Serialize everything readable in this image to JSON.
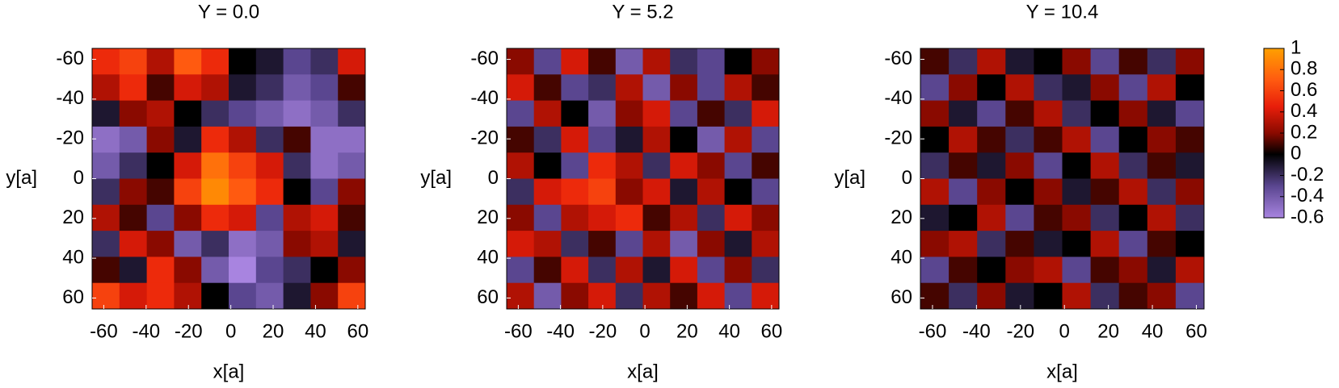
{
  "chart_data": [
    {
      "type": "heatmap",
      "title": "Y = 0.0",
      "xlabel": "x[a]",
      "ylabel": "y[a]",
      "xlim": [
        -65.5,
        63.5
      ],
      "ylim": [
        -65.5,
        65.5
      ],
      "y_reversed": true,
      "xticks": [
        -60,
        -40,
        -20,
        0,
        20,
        40,
        60
      ],
      "yticks": [
        -60,
        -40,
        -20,
        0,
        20,
        40,
        60
      ],
      "z": [
        [
          0.5,
          0.6,
          0.3,
          0.7,
          0.5,
          0.0,
          -0.1,
          -0.3,
          -0.2,
          0.4
        ],
        [
          0.3,
          0.5,
          0.1,
          0.4,
          0.3,
          -0.1,
          -0.2,
          -0.4,
          -0.3,
          0.1
        ],
        [
          -0.1,
          0.2,
          0.3,
          0.0,
          -0.2,
          -0.3,
          -0.4,
          -0.5,
          -0.4,
          -0.2
        ],
        [
          -0.5,
          -0.4,
          0.2,
          -0.1,
          0.5,
          0.3,
          -0.2,
          0.1,
          -0.5,
          -0.5
        ],
        [
          -0.4,
          -0.2,
          0.0,
          0.4,
          0.8,
          0.6,
          0.4,
          -0.2,
          -0.5,
          -0.4
        ],
        [
          -0.2,
          0.2,
          0.1,
          0.6,
          0.9,
          0.7,
          0.5,
          0.0,
          -0.3,
          0.2
        ],
        [
          0.3,
          0.1,
          -0.3,
          0.2,
          0.5,
          0.4,
          -0.3,
          0.3,
          0.4,
          0.1
        ],
        [
          -0.2,
          0.4,
          0.2,
          -0.4,
          -0.2,
          -0.5,
          -0.4,
          0.2,
          0.3,
          -0.1
        ],
        [
          0.1,
          -0.1,
          0.5,
          0.2,
          -0.4,
          -0.6,
          -0.3,
          -0.2,
          0.0,
          0.2
        ],
        [
          0.6,
          0.4,
          0.5,
          0.3,
          0.0,
          -0.3,
          -0.4,
          -0.1,
          0.2,
          0.6
        ]
      ]
    },
    {
      "type": "heatmap",
      "title": "Y = 5.2",
      "xlabel": "x[a]",
      "ylabel": "y[a]",
      "xlim": [
        -65.5,
        63.5
      ],
      "ylim": [
        -65.5,
        65.5
      ],
      "y_reversed": true,
      "xticks": [
        -60,
        -40,
        -20,
        0,
        20,
        40,
        60
      ],
      "yticks": [
        -60,
        -40,
        -20,
        0,
        20,
        40,
        60
      ],
      "z": [
        [
          0.2,
          -0.3,
          0.4,
          0.1,
          -0.4,
          0.3,
          -0.2,
          -0.3,
          0.0,
          0.2
        ],
        [
          0.4,
          0.1,
          -0.3,
          -0.2,
          0.3,
          -0.4,
          0.2,
          -0.3,
          0.3,
          0.1
        ],
        [
          -0.3,
          0.3,
          0.0,
          -0.4,
          0.2,
          0.4,
          -0.3,
          0.1,
          -0.2,
          0.4
        ],
        [
          0.1,
          -0.2,
          0.4,
          -0.3,
          -0.1,
          0.3,
          0.0,
          -0.4,
          0.3,
          -0.3
        ],
        [
          0.3,
          0.0,
          -0.3,
          0.5,
          0.3,
          -0.2,
          0.4,
          0.2,
          -0.3,
          0.1
        ],
        [
          -0.2,
          0.4,
          0.5,
          0.6,
          0.2,
          0.4,
          -0.1,
          0.3,
          0.0,
          -0.3
        ],
        [
          0.2,
          -0.3,
          0.3,
          0.4,
          0.5,
          0.1,
          0.3,
          -0.2,
          0.4,
          0.2
        ],
        [
          0.4,
          0.3,
          -0.2,
          0.1,
          -0.3,
          0.3,
          -0.4,
          0.2,
          -0.1,
          0.3
        ],
        [
          -0.3,
          0.1,
          0.4,
          -0.2,
          0.3,
          -0.1,
          0.4,
          -0.3,
          0.2,
          -0.2
        ],
        [
          0.3,
          -0.4,
          0.2,
          0.4,
          -0.2,
          0.3,
          0.1,
          0.4,
          -0.3,
          0.4
        ]
      ]
    },
    {
      "type": "heatmap",
      "title": "Y = 10.4",
      "xlabel": "x[a]",
      "ylabel": "y[a]",
      "xlim": [
        -65.5,
        63.5
      ],
      "ylim": [
        -65.5,
        65.5
      ],
      "y_reversed": true,
      "xticks": [
        -60,
        -40,
        -20,
        0,
        20,
        40,
        60
      ],
      "yticks": [
        -60,
        -40,
        -20,
        0,
        20,
        40,
        60
      ],
      "z": [
        [
          0.1,
          -0.2,
          0.3,
          -0.1,
          0.0,
          0.2,
          -0.3,
          0.1,
          -0.2,
          0.2
        ],
        [
          -0.3,
          0.2,
          0.0,
          0.3,
          -0.2,
          -0.1,
          0.2,
          -0.3,
          0.3,
          0.0
        ],
        [
          0.2,
          -0.1,
          -0.3,
          0.1,
          0.3,
          -0.2,
          0.0,
          0.2,
          -0.1,
          -0.3
        ],
        [
          0.0,
          0.3,
          0.1,
          -0.2,
          0.1,
          0.3,
          -0.3,
          0.0,
          0.2,
          0.1
        ],
        [
          -0.2,
          0.1,
          -0.1,
          0.2,
          -0.3,
          0.0,
          0.3,
          -0.2,
          0.1,
          -0.1
        ],
        [
          0.3,
          -0.3,
          0.2,
          0.0,
          0.2,
          -0.1,
          0.1,
          0.3,
          -0.2,
          0.2
        ],
        [
          -0.1,
          0.0,
          0.3,
          -0.3,
          0.1,
          0.2,
          -0.2,
          0.0,
          0.3,
          -0.2
        ],
        [
          0.2,
          0.3,
          -0.2,
          0.1,
          -0.1,
          0.0,
          0.3,
          -0.3,
          0.1,
          0.0
        ],
        [
          -0.3,
          0.1,
          0.0,
          0.2,
          0.3,
          -0.3,
          0.1,
          0.2,
          -0.1,
          0.3
        ],
        [
          0.1,
          -0.2,
          0.2,
          -0.1,
          0.0,
          0.3,
          -0.2,
          0.1,
          0.2,
          -0.3
        ]
      ]
    },
    {
      "type": "colorbar",
      "clim": [
        -0.6,
        1
      ],
      "ticks": [
        1,
        0.8,
        0.6,
        0.4,
        0.2,
        0,
        -0.2,
        -0.4,
        -0.6
      ],
      "colormap": [
        {
          "value": -0.6,
          "color": "#a884e0"
        },
        {
          "value": -0.3,
          "color": "#5a4690"
        },
        {
          "value": 0,
          "color": "#000000"
        },
        {
          "value": 0.2,
          "color": "#8a0a00"
        },
        {
          "value": 0.45,
          "color": "#e81e0a"
        },
        {
          "value": 0.7,
          "color": "#ff5a10"
        },
        {
          "value": 1,
          "color": "#ffa000"
        }
      ]
    }
  ]
}
